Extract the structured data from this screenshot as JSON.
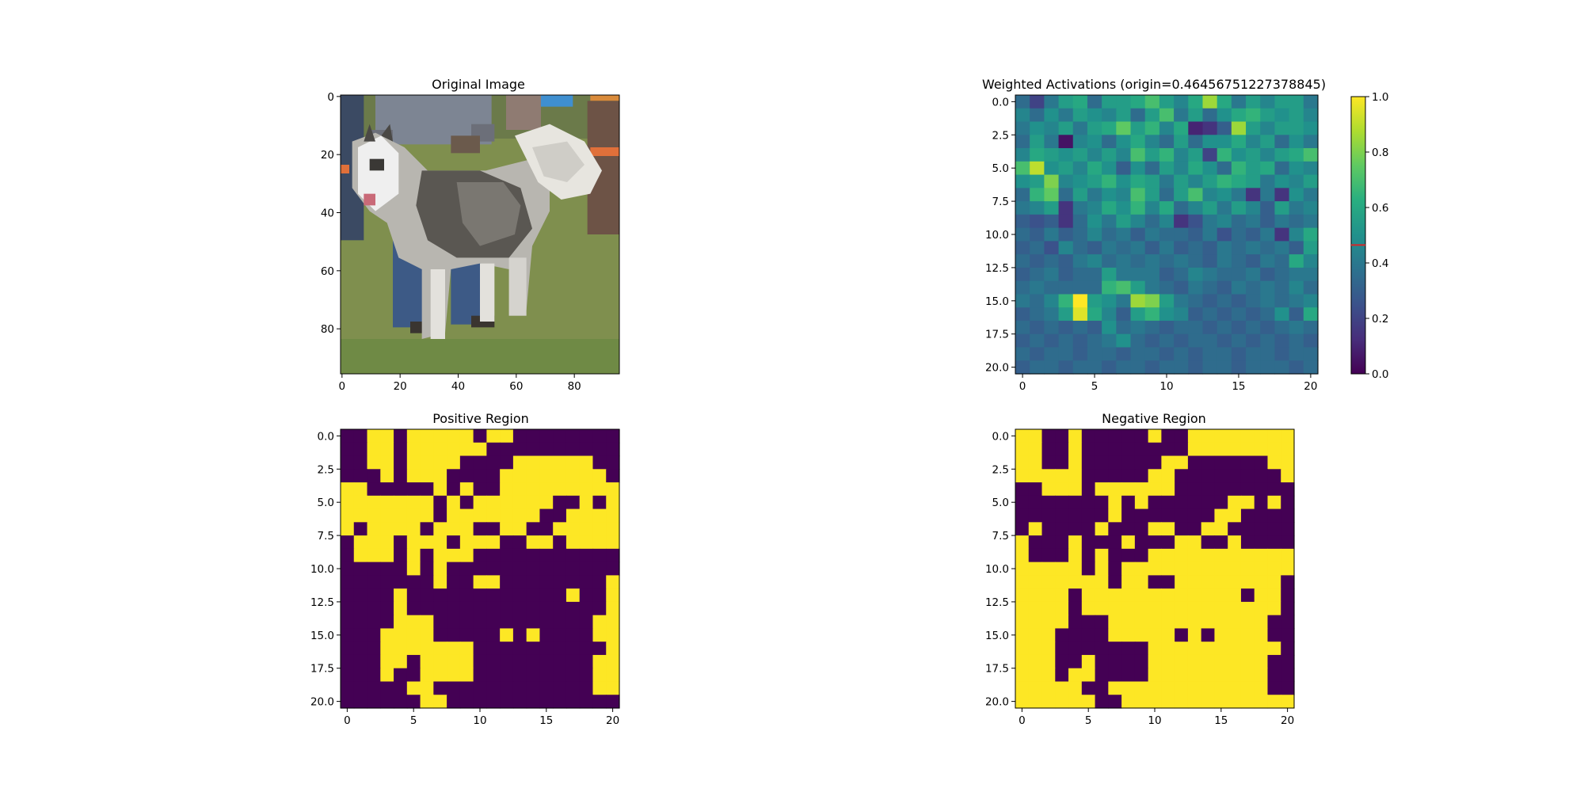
{
  "chart_data": [
    {
      "type": "image",
      "title": "Original Image",
      "image_description": "pixelated photo of a husky dog on grass with a person in jeans holding it",
      "xlim": [
        -0.5,
        95.5
      ],
      "ylim": [
        95.5,
        -0.5
      ],
      "xticks": [
        "0",
        "20",
        "40",
        "60",
        "80"
      ],
      "yticks": [
        "0",
        "20",
        "40",
        "60",
        "80"
      ]
    },
    {
      "type": "heatmap",
      "title": "Weighted Activations (origin=0.46456751227378845)",
      "colormap": "viridis",
      "xlim": [
        -0.5,
        20.5
      ],
      "ylim": [
        20.5,
        -0.5
      ],
      "xticks": [
        "0",
        "5",
        "10",
        "15",
        "20"
      ],
      "yticks": [
        "0.0",
        "2.5",
        "5.0",
        "7.5",
        "10.0",
        "12.5",
        "15.0",
        "17.5",
        "20.0"
      ],
      "colorbar": {
        "range": [
          0,
          1
        ],
        "ticks": [
          "0.0",
          "0.2",
          "0.4",
          "0.6",
          "0.8",
          "1.0"
        ],
        "marker_value": 0.46456751227378845,
        "marker_color": "#d62728"
      },
      "values": [
        [
          0.35,
          0.2,
          0.4,
          0.55,
          0.6,
          0.35,
          0.55,
          0.55,
          0.6,
          0.7,
          0.55,
          0.45,
          0.6,
          0.85,
          0.6,
          0.4,
          0.55,
          0.45,
          0.55,
          0.55,
          0.4
        ],
        [
          0.45,
          0.35,
          0.5,
          0.4,
          0.55,
          0.5,
          0.45,
          0.55,
          0.35,
          0.55,
          0.7,
          0.4,
          0.55,
          0.35,
          0.5,
          0.6,
          0.65,
          0.55,
          0.5,
          0.55,
          0.45
        ],
        [
          0.4,
          0.5,
          0.45,
          0.55,
          0.4,
          0.55,
          0.6,
          0.75,
          0.55,
          0.65,
          0.45,
          0.6,
          0.1,
          0.15,
          0.3,
          0.85,
          0.55,
          0.45,
          0.55,
          0.55,
          0.5
        ],
        [
          0.35,
          0.55,
          0.4,
          0.05,
          0.45,
          0.5,
          0.35,
          0.5,
          0.6,
          0.45,
          0.35,
          0.55,
          0.35,
          0.5,
          0.5,
          0.6,
          0.45,
          0.55,
          0.35,
          0.5,
          0.4
        ],
        [
          0.45,
          0.6,
          0.55,
          0.5,
          0.55,
          0.45,
          0.55,
          0.45,
          0.7,
          0.55,
          0.65,
          0.45,
          0.55,
          0.2,
          0.65,
          0.5,
          0.55,
          0.45,
          0.55,
          0.6,
          0.7
        ],
        [
          0.7,
          0.9,
          0.5,
          0.55,
          0.45,
          0.6,
          0.5,
          0.3,
          0.5,
          0.35,
          0.55,
          0.45,
          0.6,
          0.5,
          0.35,
          0.65,
          0.55,
          0.6,
          0.35,
          0.5,
          0.45
        ],
        [
          0.5,
          0.55,
          0.8,
          0.45,
          0.5,
          0.55,
          0.65,
          0.5,
          0.6,
          0.55,
          0.4,
          0.55,
          0.45,
          0.55,
          0.65,
          0.6,
          0.55,
          0.4,
          0.5,
          0.45,
          0.55
        ],
        [
          0.35,
          0.65,
          0.75,
          0.35,
          0.55,
          0.4,
          0.5,
          0.45,
          0.7,
          0.55,
          0.35,
          0.55,
          0.7,
          0.45,
          0.5,
          0.4,
          0.15,
          0.4,
          0.15,
          0.5,
          0.4
        ],
        [
          0.4,
          0.45,
          0.55,
          0.15,
          0.4,
          0.45,
          0.6,
          0.5,
          0.65,
          0.45,
          0.6,
          0.35,
          0.45,
          0.55,
          0.4,
          0.55,
          0.45,
          0.3,
          0.55,
          0.4,
          0.45
        ],
        [
          0.3,
          0.25,
          0.3,
          0.15,
          0.35,
          0.5,
          0.4,
          0.55,
          0.45,
          0.35,
          0.45,
          0.15,
          0.25,
          0.4,
          0.45,
          0.35,
          0.4,
          0.3,
          0.4,
          0.35,
          0.4
        ],
        [
          0.35,
          0.3,
          0.4,
          0.3,
          0.35,
          0.45,
          0.35,
          0.4,
          0.3,
          0.4,
          0.35,
          0.35,
          0.3,
          0.4,
          0.25,
          0.35,
          0.3,
          0.4,
          0.15,
          0.45,
          0.6
        ],
        [
          0.3,
          0.35,
          0.25,
          0.45,
          0.35,
          0.3,
          0.4,
          0.35,
          0.4,
          0.3,
          0.4,
          0.3,
          0.35,
          0.3,
          0.4,
          0.35,
          0.4,
          0.35,
          0.4,
          0.3,
          0.55
        ],
        [
          0.35,
          0.3,
          0.35,
          0.3,
          0.4,
          0.45,
          0.35,
          0.4,
          0.35,
          0.4,
          0.35,
          0.4,
          0.35,
          0.3,
          0.4,
          0.35,
          0.3,
          0.4,
          0.35,
          0.6,
          0.45
        ],
        [
          0.3,
          0.35,
          0.4,
          0.3,
          0.35,
          0.35,
          0.55,
          0.4,
          0.4,
          0.4,
          0.3,
          0.35,
          0.45,
          0.4,
          0.35,
          0.35,
          0.4,
          0.3,
          0.35,
          0.4,
          0.4
        ],
        [
          0.35,
          0.4,
          0.35,
          0.35,
          0.35,
          0.35,
          0.65,
          0.7,
          0.55,
          0.4,
          0.35,
          0.3,
          0.4,
          0.35,
          0.3,
          0.4,
          0.35,
          0.4,
          0.35,
          0.45,
          0.35
        ],
        [
          0.4,
          0.35,
          0.45,
          0.65,
          1.0,
          0.55,
          0.5,
          0.4,
          0.85,
          0.8,
          0.55,
          0.4,
          0.35,
          0.3,
          0.35,
          0.3,
          0.35,
          0.4,
          0.35,
          0.4,
          0.45
        ],
        [
          0.3,
          0.35,
          0.4,
          0.55,
          0.95,
          0.6,
          0.45,
          0.3,
          0.55,
          0.65,
          0.5,
          0.45,
          0.3,
          0.35,
          0.3,
          0.35,
          0.3,
          0.35,
          0.5,
          0.3,
          0.6
        ],
        [
          0.35,
          0.3,
          0.35,
          0.3,
          0.35,
          0.3,
          0.5,
          0.35,
          0.4,
          0.35,
          0.3,
          0.35,
          0.35,
          0.3,
          0.35,
          0.3,
          0.35,
          0.3,
          0.35,
          0.4,
          0.35
        ],
        [
          0.3,
          0.35,
          0.3,
          0.35,
          0.3,
          0.35,
          0.4,
          0.5,
          0.35,
          0.3,
          0.35,
          0.3,
          0.35,
          0.35,
          0.3,
          0.35,
          0.3,
          0.35,
          0.3,
          0.35,
          0.3
        ],
        [
          0.35,
          0.3,
          0.35,
          0.35,
          0.3,
          0.35,
          0.35,
          0.3,
          0.35,
          0.35,
          0.3,
          0.35,
          0.3,
          0.35,
          0.35,
          0.3,
          0.35,
          0.35,
          0.3,
          0.35,
          0.35
        ],
        [
          0.3,
          0.35,
          0.35,
          0.3,
          0.35,
          0.35,
          0.3,
          0.35,
          0.35,
          0.3,
          0.35,
          0.35,
          0.3,
          0.35,
          0.35,
          0.3,
          0.35,
          0.35,
          0.35,
          0.3,
          0.35
        ]
      ]
    },
    {
      "type": "heatmap",
      "title": "Positive Region",
      "colormap": "viridis-binary",
      "xlim": [
        -0.5,
        20.5
      ],
      "ylim": [
        20.5,
        -0.5
      ],
      "xticks": [
        "0",
        "5",
        "10",
        "15",
        "20"
      ],
      "yticks": [
        "0.0",
        "2.5",
        "5.0",
        "7.5",
        "10.0",
        "12.5",
        "15.0",
        "17.5",
        "20.0"
      ],
      "values": [
        "001101111101100000000",
        "001101111110000000000",
        "001101111000011111100",
        "000101110000111111110",
        "110000010100111111111",
        "111111101011111100101",
        "111111101111111001111",
        "101111011100110011111",
        "011101110111001101111",
        "011101011100000000000",
        "000001010000000000000",
        "000000010011000000001",
        "000010000000000001001",
        "000010000000000000001",
        "000011100000000000011",
        "000111100000101000011",
        "000111111100000000001",
        "000110111100000000011",
        "000100111100000000011",
        "000001100000000000011",
        "000000110000000000000"
      ]
    },
    {
      "type": "heatmap",
      "title": "Negative Region",
      "colormap": "viridis-binary",
      "xlim": [
        -0.5,
        20.5
      ],
      "ylim": [
        20.5,
        -0.5
      ],
      "xticks": [
        "0",
        "5",
        "10",
        "15",
        "20"
      ],
      "yticks": [
        "0.0",
        "2.5",
        "5.0",
        "7.5",
        "10.0",
        "12.5",
        "15.0",
        "17.5",
        "20.0"
      ],
      "values": [
        "110010000010011111111",
        "110010000000011111111",
        "110010000001100000011",
        "111110000011000000001",
        "001110111111000000000",
        "000000010100000011010",
        "000000010000000110000",
        "010000100011001100000",
        "100010001000110010000",
        "100010100011111111111",
        "111110101111111111111",
        "111111101100111111110",
        "111101111111111110110",
        "111101111111111111110",
        "111100011111111111100",
        "111000011111010111100",
        "111000000011111111110",
        "111001000011111111100",
        "111011000011111111100",
        "111110011111111111100",
        "111111001111111111111"
      ]
    }
  ]
}
